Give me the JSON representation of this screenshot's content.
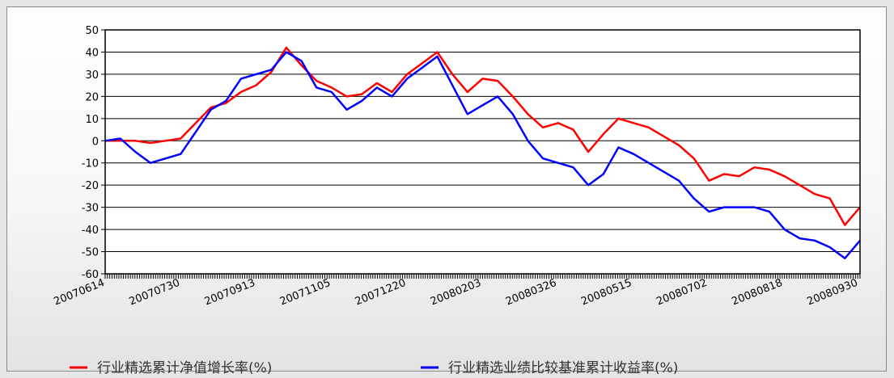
{
  "chart_data": {
    "type": "line",
    "ylim": [
      -60,
      50
    ],
    "yticks": [
      50,
      40,
      30,
      20,
      10,
      0,
      -10,
      -20,
      -30,
      -40,
      -50,
      -60
    ],
    "grid": true,
    "legend_position": "bottom",
    "x_tick_labels": [
      "20070614",
      "20070730",
      "20070913",
      "20071105",
      "20071220",
      "20080203",
      "20080326",
      "20080515",
      "20080702",
      "20080818",
      "20080930"
    ],
    "x": [
      "20070614",
      "20070622",
      "20070701",
      "20070710",
      "20070720",
      "20070730",
      "20070808",
      "20070817",
      "20070826",
      "20070904",
      "20070913",
      "20070926",
      "20071009",
      "20071022",
      "20071105",
      "20071114",
      "20071123",
      "20071202",
      "20071211",
      "20071220",
      "20071229",
      "20080107",
      "20080116",
      "20080125",
      "20080203",
      "20080214",
      "20080225",
      "20080307",
      "20080318",
      "20080326",
      "20080405",
      "20080415",
      "20080425",
      "20080505",
      "20080515",
      "20080525",
      "20080604",
      "20080614",
      "20080624",
      "20080702",
      "20080711",
      "20080720",
      "20080730",
      "20080808",
      "20080818",
      "20080825",
      "20080901",
      "20080908",
      "20080915",
      "20080922",
      "20080930"
    ],
    "series": [
      {
        "name": "行业精选累计净值增长率(%)",
        "color": "#ff0000",
        "values": [
          0,
          0,
          0,
          -1,
          0,
          1,
          8,
          15,
          17,
          22,
          25,
          31,
          42,
          34,
          27,
          24,
          20,
          21,
          26,
          22,
          30,
          35,
          40,
          30,
          22,
          28,
          27,
          20,
          12,
          6,
          8,
          5,
          -5,
          3,
          10,
          8,
          6,
          2,
          -2,
          -8,
          -18,
          -15,
          -16,
          -12,
          -13,
          -16,
          -20,
          -24,
          -26,
          -38,
          -30
        ]
      },
      {
        "name": "行业精选业绩比较基准累计收益率(%)",
        "color": "#0000ff",
        "values": [
          0,
          1,
          -5,
          -10,
          -8,
          -6,
          4,
          14,
          18,
          28,
          30,
          32,
          40,
          36,
          24,
          22,
          14,
          18,
          24,
          20,
          28,
          33,
          38,
          25,
          12,
          16,
          20,
          12,
          0,
          -8,
          -10,
          -12,
          -20,
          -15,
          -3,
          -6,
          -10,
          -14,
          -18,
          -26,
          -32,
          -30,
          -30,
          -30,
          -32,
          -40,
          -44,
          -45,
          -48,
          -53,
          -45
        ]
      }
    ]
  }
}
